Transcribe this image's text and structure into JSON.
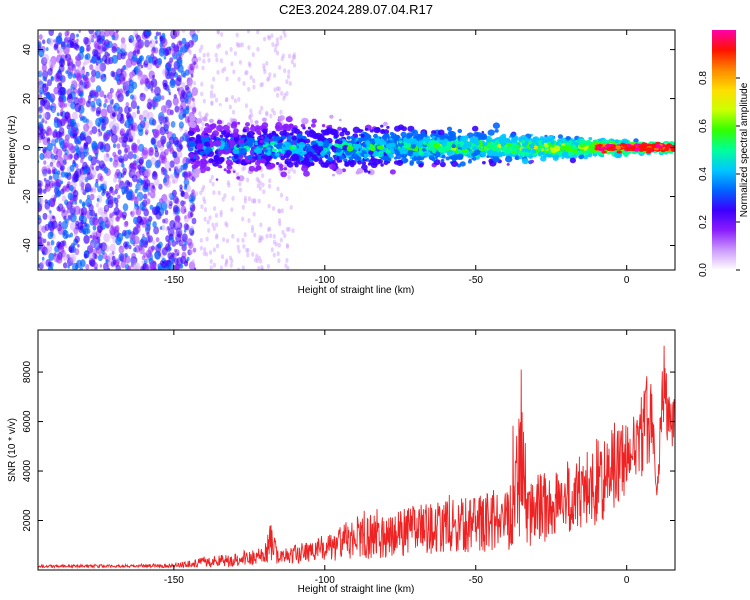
{
  "page": {
    "title": "C2E3.2024.289.07.04.R17"
  },
  "colors": {
    "line": "#ee2222",
    "background": "#ffffff",
    "colormap": [
      "#ffffff",
      "#cc99ff",
      "#8a1cff",
      "#3a00ff",
      "#0066ff",
      "#00c8ff",
      "#00ff99",
      "#33ff00",
      "#ccff00",
      "#ffdd00",
      "#ff8800",
      "#ff1100",
      "#ff00aa"
    ]
  },
  "chart_data": [
    {
      "type": "heatmap",
      "title": "C2E3.2024.289.07.04.R17",
      "xlabel": "Height of straight line (km)",
      "ylabel": "Frequency (Hz)",
      "xlim": [
        -195,
        16
      ],
      "ylim": [
        -50,
        48
      ],
      "x_ticks": [
        "-150",
        "-100",
        "-50",
        "0"
      ],
      "y_ticks": [
        "-40",
        "-20",
        "0",
        "20",
        "40"
      ],
      "colorbar": {
        "label": "Normalized spectral amplitude",
        "range": [
          0.0,
          1.0
        ],
        "ticks": [
          "0.0",
          "0.2",
          "0.4",
          "0.6",
          "0.8"
        ]
      },
      "description_of_pattern": "broad scattered low-amplitude noise for heights below about -145 km; a concentrated band around 0 Hz from -145 km to 16 km, narrowing and increasing in amplitude toward 0 km"
    },
    {
      "type": "line",
      "xlabel": "Height of straight line (km)",
      "ylabel": "SNR (10 * v/v)",
      "xlim": [
        -195,
        16
      ],
      "ylim": [
        0,
        9700
      ],
      "x_ticks": [
        "-150",
        "-100",
        "-50",
        "0"
      ],
      "y_ticks": [
        "2000",
        "4000",
        "6000",
        "8000"
      ],
      "series": [
        {
          "x": [
            -195,
            -180,
            -165,
            -150,
            -140,
            -130,
            -120,
            -118,
            -115,
            -110,
            -100,
            -90,
            -80,
            -70,
            -60,
            -50,
            -40,
            -35,
            -33,
            -30,
            -25,
            -20,
            -15,
            -10,
            -5,
            0,
            5,
            8,
            10,
            12,
            15,
            16
          ],
          "y": [
            200,
            220,
            200,
            250,
            500,
            700,
            900,
            2000,
            700,
            1000,
            1300,
            2200,
            2300,
            2600,
            2800,
            3000,
            3400,
            8300,
            3500,
            3800,
            4200,
            4400,
            4700,
            5300,
            5700,
            6000,
            6800,
            9000,
            3000,
            9500,
            6500,
            7800
          ],
          "envelope_low": [
            100,
            100,
            100,
            100,
            120,
            150,
            200,
            300,
            200,
            250,
            300,
            400,
            500,
            600,
            700,
            700,
            800,
            900,
            900,
            1000,
            1200,
            1400,
            1500,
            1800,
            2200,
            2800,
            3500,
            4500,
            2900,
            5500,
            4000,
            6000
          ]
        }
      ]
    }
  ]
}
